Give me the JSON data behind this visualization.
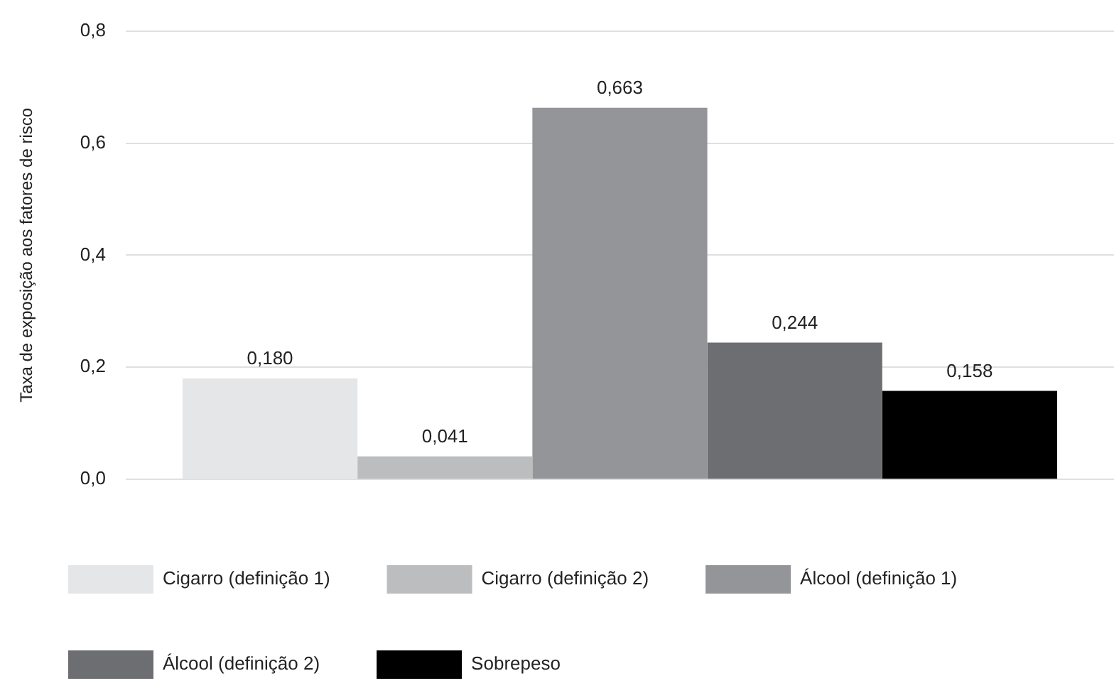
{
  "chart_data": {
    "type": "bar",
    "ylabel": "Taxa de exposição aos fatores de risco",
    "categories": [
      null
    ],
    "series": [
      {
        "name": "Cigarro (definição 1)",
        "color": "#e5e6e7",
        "values": [
          0.18
        ],
        "value_labels": [
          "0,180"
        ]
      },
      {
        "name": "Cigarro (definição 2)",
        "color": "#bcbdbf",
        "values": [
          0.041
        ],
        "value_labels": [
          "0,041"
        ]
      },
      {
        "name": "Álcool (definição 1)",
        "color": "#939598",
        "values": [
          0.663
        ],
        "value_labels": [
          "0,663"
        ]
      },
      {
        "name": "Álcool (definição 2)",
        "color": "#6d6e71",
        "values": [
          0.244
        ],
        "value_labels": [
          "0,244"
        ]
      },
      {
        "name": "Sobrepeso",
        "color": "#000000",
        "values": [
          0.158
        ],
        "value_labels": [
          "0,158"
        ]
      }
    ],
    "ylim": [
      0,
      0.8
    ],
    "yticks": [
      {
        "value": 0,
        "label": "0,0"
      },
      {
        "value": 0.2,
        "label": "0,2"
      },
      {
        "value": 0.4,
        "label": "0,4"
      },
      {
        "value": 0.6,
        "label": "0,6"
      },
      {
        "value": 0.8,
        "label": "0,8"
      }
    ],
    "grid": "y",
    "legend": "bottom"
  }
}
